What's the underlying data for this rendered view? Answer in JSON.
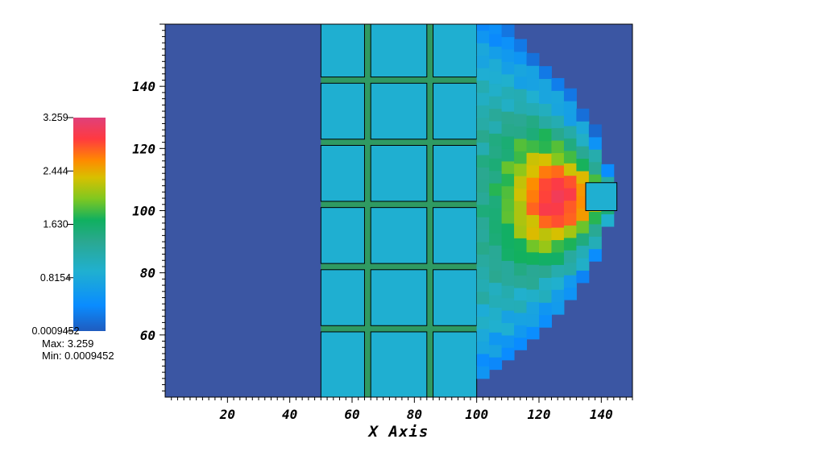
{
  "chart_data": {
    "type": "heatmap",
    "title": "",
    "xlabel": "X Axis",
    "ylabel": "",
    "xlim": [
      0,
      150
    ],
    "ylim": [
      40,
      160
    ],
    "xticks": [
      {
        "value": 20,
        "label": "20"
      },
      {
        "value": 40,
        "label": "40"
      },
      {
        "value": 60,
        "label": "60"
      },
      {
        "value": 80,
        "label": "80"
      },
      {
        "value": 100,
        "label": "100"
      },
      {
        "value": 120,
        "label": "120"
      },
      {
        "value": 140,
        "label": "140"
      }
    ],
    "yticks": [
      {
        "value": 60,
        "label": "60"
      },
      {
        "value": 80,
        "label": "80"
      },
      {
        "value": 100,
        "label": "100"
      },
      {
        "value": 120,
        "label": "120"
      },
      {
        "value": 140,
        "label": "140"
      }
    ],
    "background_value": 0.2,
    "block_value": 0.9,
    "block_region": {
      "x0": 50,
      "x1": 100
    },
    "block_columns": [
      {
        "x0": 50,
        "x1": 64
      },
      {
        "x0": 66,
        "x1": 84
      },
      {
        "x0": 86,
        "x1": 100
      }
    ],
    "block_rows": [
      {
        "y0": 40,
        "y1": 61
      },
      {
        "y0": 63,
        "y1": 81
      },
      {
        "y0": 83,
        "y1": 101
      },
      {
        "y0": 103,
        "y1": 121
      },
      {
        "y0": 123,
        "y1": 141
      },
      {
        "y0": 143,
        "y1": 160
      }
    ],
    "plume": {
      "x_start": 100,
      "y_center": 104,
      "tip_x": 141,
      "peak_x": 124,
      "peak_value": 3.1,
      "base_value": 1.2,
      "half_width_at_start": 58,
      "cell_size": 4
    },
    "small_box": {
      "x0": 135,
      "x1": 145,
      "y0": 100,
      "y1": 109,
      "value": 0.9
    },
    "colorbar": {
      "colormap": "jet",
      "min": 0.0009452,
      "max": 3.259,
      "tick_labels": [
        "3.259",
        "2.444",
        "1.630",
        "0.8154",
        "0.0009452"
      ],
      "tick_values": [
        3.259,
        2.444,
        1.63,
        0.8154,
        0.0009452
      ],
      "max_label": "Max:  3.259",
      "min_label": "Min:  0.0009452"
    }
  }
}
